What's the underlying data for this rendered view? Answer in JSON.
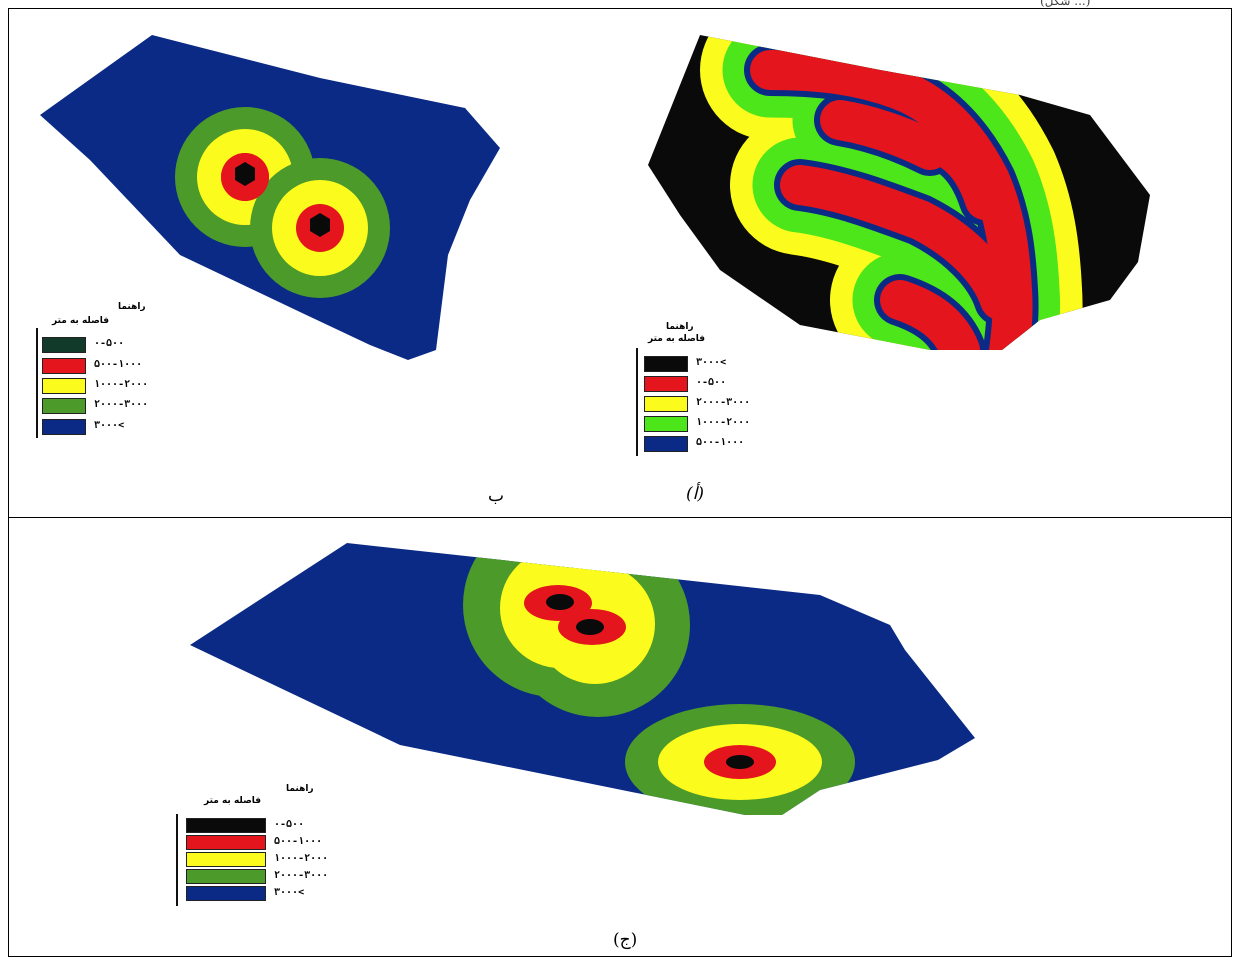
{
  "header_text": "(شکل ...)",
  "captions": {
    "a": "(أ)",
    "b": "ب",
    "c": "(ج)"
  },
  "colors": {
    "black": "#0a0a0a",
    "red": "#e4151c",
    "yellow": "#fbfb1e",
    "green": "#4c9a2a",
    "lime": "#4ce61a",
    "blue": "#0b2a86",
    "darkgreen": "#123a2a"
  },
  "map_a": {
    "legend_title": "راهنما",
    "legend_subtitle": "فاصله به متر",
    "legend": [
      {
        "label": "۳۰۰۰<",
        "color": "#0a0a0a"
      },
      {
        "label": "۰-۵۰۰",
        "color": "#e4151c"
      },
      {
        "label": "۲۰۰۰-۳۰۰۰",
        "color": "#fbfb1e"
      },
      {
        "label": "۱۰۰۰-۲۰۰۰",
        "color": "#4ce61a"
      },
      {
        "label": "۵۰۰-۱۰۰۰",
        "color": "#0b2a86"
      }
    ]
  },
  "map_b": {
    "legend_title": "راهنما",
    "legend_subtitle": "فاصله به متر",
    "legend": [
      {
        "label": "۰-۵۰۰",
        "color": "#123a2a"
      },
      {
        "label": "۵۰۰-۱۰۰۰",
        "color": "#e4151c"
      },
      {
        "label": "۱۰۰۰-۲۰۰۰",
        "color": "#fbfb1e"
      },
      {
        "label": "۲۰۰۰-۳۰۰۰",
        "color": "#4c9a2a"
      },
      {
        "label": "۳۰۰۰<",
        "color": "#0b2a86"
      }
    ]
  },
  "map_c": {
    "legend_title": "راهنما",
    "legend_subtitle": "فاصله به متر",
    "legend": [
      {
        "label": "۰-۵۰۰",
        "color": "#0a0a0a"
      },
      {
        "label": "۵۰۰-۱۰۰۰",
        "color": "#e4151c"
      },
      {
        "label": "۱۰۰۰-۲۰۰۰",
        "color": "#fbfb1e"
      },
      {
        "label": "۲۰۰۰-۳۰۰۰",
        "color": "#4c9a2a"
      },
      {
        "label": "۳۰۰۰<",
        "color": "#0b2a86"
      }
    ]
  }
}
